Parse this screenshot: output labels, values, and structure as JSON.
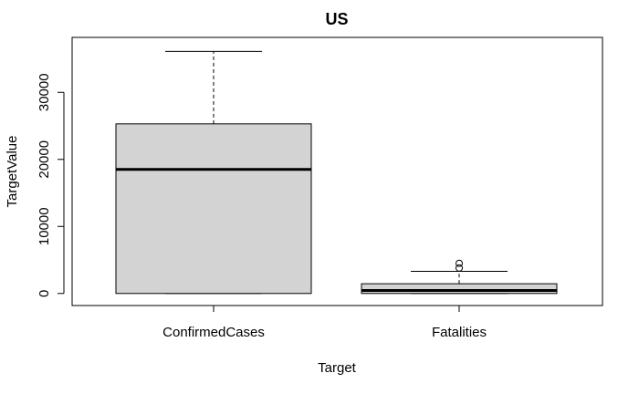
{
  "chart_data": {
    "type": "boxplot",
    "title": "US",
    "xlabel": "Target",
    "ylabel": "TargetValue",
    "ylim": [
      -1800,
      38200
    ],
    "y_ticks": [
      0,
      10000,
      20000,
      30000
    ],
    "y_tick_labels": [
      "0",
      "10000",
      "20000",
      "30000"
    ],
    "grid": false,
    "box_color": "#d3d3d3",
    "categories": [
      "ConfirmedCases",
      "Fatalities"
    ],
    "boxes": [
      {
        "category": "ConfirmedCases",
        "whisker_low": 0,
        "q1": 0,
        "median": 18500,
        "q3": 25300,
        "whisker_high": 36100,
        "outliers": []
      },
      {
        "category": "Fatalities",
        "whisker_low": 0,
        "q1": 0,
        "median": 450,
        "q3": 1450,
        "whisker_high": 3300,
        "outliers": [
          3800,
          4500
        ]
      }
    ]
  }
}
